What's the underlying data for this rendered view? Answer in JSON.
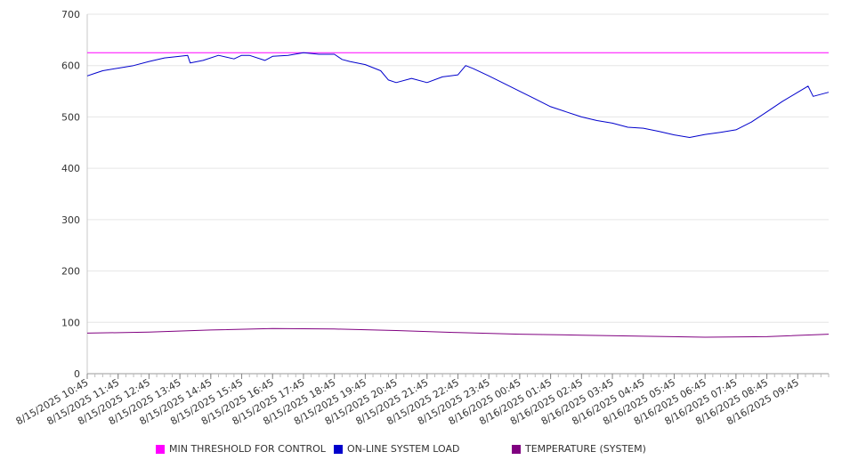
{
  "chart_data": {
    "type": "line",
    "title": "",
    "xlabel": "",
    "ylabel": "",
    "ylim": [
      0,
      700
    ],
    "yticks": [
      0,
      100,
      200,
      300,
      400,
      500,
      600,
      700
    ],
    "grid": true,
    "legend_position": "bottom",
    "x_tick_labels": [
      "8/15/2025 10:45",
      "8/15/2025 11:45",
      "8/15/2025 12:45",
      "8/15/2025 13:45",
      "8/15/2025 14:45",
      "8/15/2025 15:45",
      "8/15/2025 16:45",
      "8/15/2025 17:45",
      "8/15/2025 18:45",
      "8/15/2025 19:45",
      "8/15/2025 20:45",
      "8/15/2025 21:45",
      "8/15/2025 22:45",
      "8/15/2025 23:45",
      "8/16/2025 00:45",
      "8/16/2025 01:45",
      "8/16/2025 02:45",
      "8/16/2025 03:45",
      "8/16/2025 04:45",
      "8/16/2025 05:45",
      "8/16/2025 06:45",
      "8/16/2025 07:45",
      "8/16/2025 08:45",
      "8/16/2025 09:45"
    ],
    "x_start": "8/15/2025 10:45",
    "x_end": "8/16/2025 10:45",
    "series": [
      {
        "name": "MIN THRESHOLD FOR CONTROL",
        "color": "#ff00ff",
        "points": [
          [
            "8/15/2025 10:45",
            625
          ],
          [
            "8/16/2025 10:45",
            625
          ]
        ]
      },
      {
        "name": "ON-LINE SYSTEM LOAD",
        "color": "#0000cc",
        "points": [
          [
            "8/15/2025 10:45",
            580
          ],
          [
            "8/15/2025 11:00",
            585
          ],
          [
            "8/15/2025 11:15",
            590
          ],
          [
            "8/15/2025 11:45",
            595
          ],
          [
            "8/15/2025 12:15",
            600
          ],
          [
            "8/15/2025 12:45",
            608
          ],
          [
            "8/15/2025 13:15",
            615
          ],
          [
            "8/15/2025 13:45",
            618
          ],
          [
            "8/15/2025 14:00",
            620
          ],
          [
            "8/15/2025 14:05",
            605
          ],
          [
            "8/15/2025 14:30",
            610
          ],
          [
            "8/15/2025 15:00",
            620
          ],
          [
            "8/15/2025 15:30",
            613
          ],
          [
            "8/15/2025 15:45",
            620
          ],
          [
            "8/15/2025 16:00",
            620
          ],
          [
            "8/15/2025 16:30",
            610
          ],
          [
            "8/15/2025 16:45",
            618
          ],
          [
            "8/15/2025 17:15",
            620
          ],
          [
            "8/15/2025 17:45",
            625
          ],
          [
            "8/15/2025 18:15",
            622
          ],
          [
            "8/15/2025 18:45",
            622
          ],
          [
            "8/15/2025 19:00",
            612
          ],
          [
            "8/15/2025 19:15",
            608
          ],
          [
            "8/15/2025 19:45",
            602
          ],
          [
            "8/15/2025 20:15",
            590
          ],
          [
            "8/15/2025 20:30",
            572
          ],
          [
            "8/15/2025 20:45",
            567
          ],
          [
            "8/15/2025 21:15",
            575
          ],
          [
            "8/15/2025 21:45",
            567
          ],
          [
            "8/15/2025 22:15",
            578
          ],
          [
            "8/15/2025 22:45",
            582
          ],
          [
            "8/15/2025 23:00",
            600
          ],
          [
            "8/15/2025 23:15",
            594
          ],
          [
            "8/15/2025 23:45",
            580
          ],
          [
            "8/16/2025 00:15",
            565
          ],
          [
            "8/16/2025 00:45",
            550
          ],
          [
            "8/16/2025 01:15",
            535
          ],
          [
            "8/16/2025 01:45",
            520
          ],
          [
            "8/16/2025 02:15",
            510
          ],
          [
            "8/16/2025 02:45",
            500
          ],
          [
            "8/16/2025 03:15",
            493
          ],
          [
            "8/16/2025 03:45",
            488
          ],
          [
            "8/16/2025 04:15",
            480
          ],
          [
            "8/16/2025 04:45",
            478
          ],
          [
            "8/16/2025 05:15",
            472
          ],
          [
            "8/16/2025 05:45",
            465
          ],
          [
            "8/16/2025 06:15",
            460
          ],
          [
            "8/16/2025 06:45",
            466
          ],
          [
            "8/16/2025 07:15",
            470
          ],
          [
            "8/16/2025 07:45",
            475
          ],
          [
            "8/16/2025 08:15",
            490
          ],
          [
            "8/16/2025 08:45",
            510
          ],
          [
            "8/16/2025 09:15",
            530
          ],
          [
            "8/16/2025 09:45",
            548
          ],
          [
            "8/16/2025 10:05",
            560
          ],
          [
            "8/16/2025 10:15",
            540
          ],
          [
            "8/16/2025 10:45",
            548
          ]
        ]
      },
      {
        "name": "TEMPERATURE (SYSTEM)",
        "color": "#800080",
        "points": [
          [
            "8/15/2025 10:45",
            79
          ],
          [
            "8/15/2025 12:45",
            81
          ],
          [
            "8/15/2025 14:45",
            85
          ],
          [
            "8/15/2025 16:45",
            88
          ],
          [
            "8/15/2025 18:45",
            87
          ],
          [
            "8/15/2025 20:45",
            84
          ],
          [
            "8/15/2025 22:45",
            80
          ],
          [
            "8/16/2025 00:45",
            77
          ],
          [
            "8/16/2025 02:45",
            75
          ],
          [
            "8/16/2025 04:45",
            73
          ],
          [
            "8/16/2025 06:45",
            71
          ],
          [
            "8/16/2025 08:45",
            72
          ],
          [
            "8/16/2025 10:45",
            77
          ]
        ]
      }
    ]
  }
}
